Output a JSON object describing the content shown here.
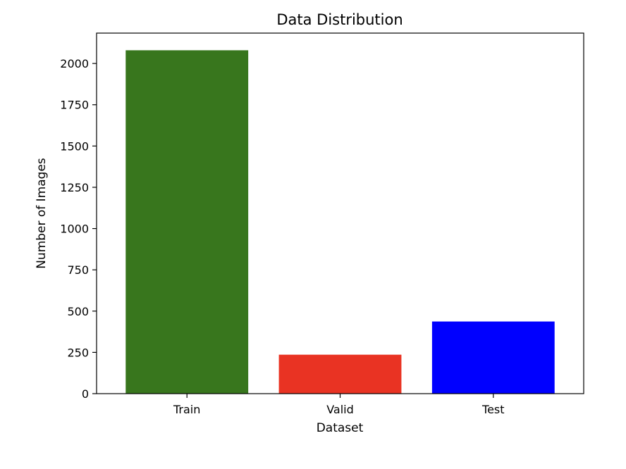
{
  "chart_data": {
    "type": "bar",
    "title": "Data Distribution",
    "xlabel": "Dataset",
    "ylabel": "Number of Images",
    "categories": [
      "Train",
      "Valid",
      "Test"
    ],
    "values": [
      2080,
      236,
      437
    ],
    "bar_colors": [
      "#38761d",
      "#e93323",
      "#0000ff"
    ],
    "ylim": [
      0,
      2184
    ],
    "yticks": [
      0,
      250,
      500,
      750,
      1000,
      1250,
      1500,
      1750,
      2000
    ],
    "grid": false,
    "legend": "none"
  }
}
